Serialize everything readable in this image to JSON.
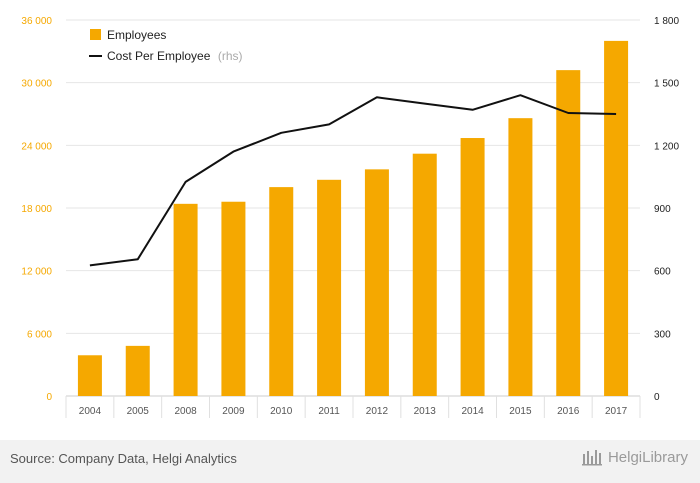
{
  "chart_data": {
    "type": "bar",
    "categories": [
      "2004",
      "2005",
      "2008",
      "2009",
      "2010",
      "2011",
      "2012",
      "2013",
      "2014",
      "2015",
      "2016",
      "2017"
    ],
    "series": [
      {
        "name": "Employees",
        "type": "bar",
        "axis": "left",
        "color": "#f5a800",
        "values": [
          3900,
          4800,
          18400,
          18600,
          20000,
          20700,
          21700,
          23200,
          24700,
          26600,
          31200,
          34000
        ]
      },
      {
        "name": "Cost Per Employee",
        "name_suffix": "(rhs)",
        "type": "line",
        "axis": "right",
        "color": "#111111",
        "values": [
          625,
          655,
          1025,
          1170,
          1260,
          1300,
          1430,
          1400,
          1370,
          1440,
          1355,
          1350
        ]
      }
    ],
    "y_left": {
      "ticks": [
        "0",
        "6 000",
        "12 000",
        "18 000",
        "24 000",
        "30 000",
        "36 000"
      ],
      "range": [
        0,
        36000
      ]
    },
    "y_right": {
      "ticks": [
        "0",
        "300",
        "600",
        "900",
        "1 200",
        "1 500",
        "1 800"
      ],
      "range": [
        0,
        1800
      ]
    },
    "grid": "horizontal",
    "legend_position": "top-left"
  },
  "footer": {
    "source": "Source: Company Data, Helgi Analytics",
    "brand": "HelgiLibrary"
  }
}
